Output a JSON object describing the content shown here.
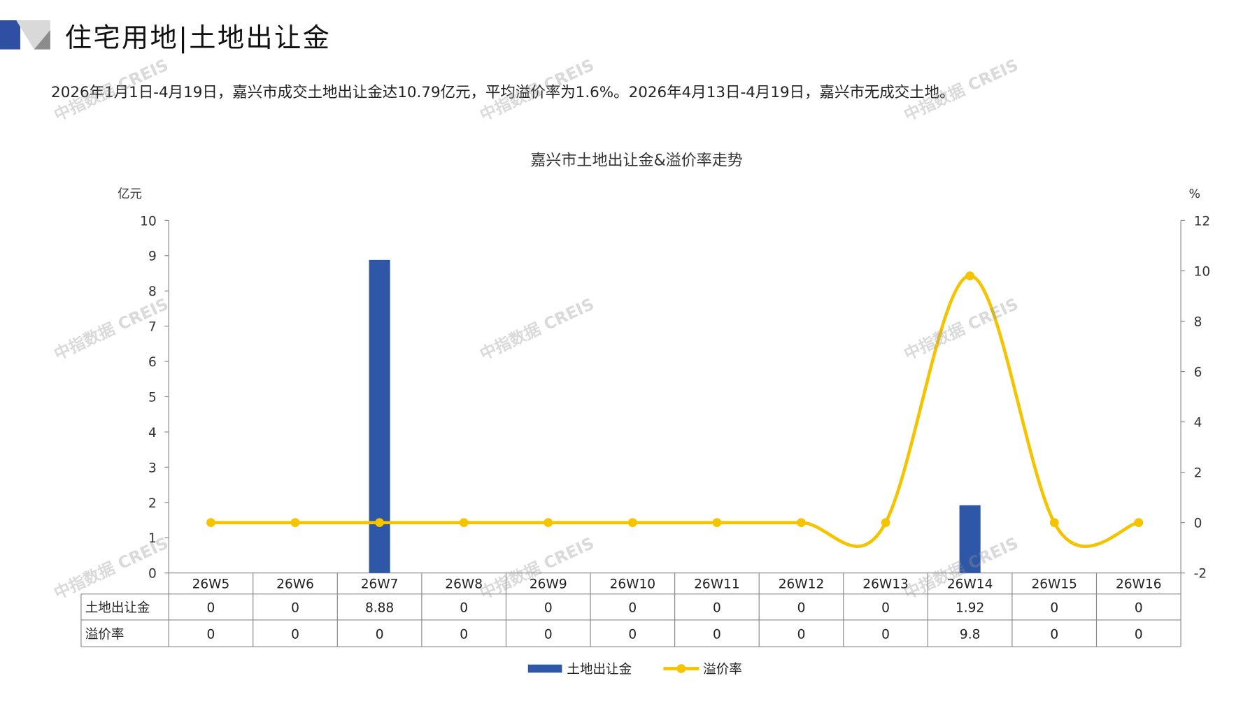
{
  "header": {
    "title": "住宅用地|土地出让金"
  },
  "summary": "2026年1月1日-4月19日，嘉兴市成交土地出让金达10.79亿元，平均溢价率为1.6%。2026年4月13日-4月19日，嘉兴市无成交土地。",
  "watermark": "中指数据 CREIS",
  "colors": {
    "bar": "#2e57a8",
    "line": "#f5c400",
    "accent": "#2e4fa3"
  },
  "chart_data": {
    "type": "bar+line",
    "title": "嘉兴市土地出让金&溢价率走势",
    "categories": [
      "26W5",
      "26W6",
      "26W7",
      "26W8",
      "26W9",
      "26W10",
      "26W11",
      "26W12",
      "26W13",
      "26W14",
      "26W15",
      "26W16"
    ],
    "y_left": {
      "label": "亿元",
      "range": [
        0,
        10
      ],
      "ticks": [
        0,
        1,
        2,
        3,
        4,
        5,
        6,
        7,
        8,
        9,
        10
      ]
    },
    "y_right": {
      "label": "%",
      "range": [
        -2,
        12
      ],
      "ticks": [
        -2,
        0,
        2,
        4,
        6,
        8,
        10,
        12
      ]
    },
    "series": [
      {
        "name": "土地出让金",
        "type": "bar",
        "axis": "left",
        "values": [
          0,
          0,
          8.88,
          0,
          0,
          0,
          0,
          0,
          0,
          1.92,
          0,
          0
        ],
        "labels": [
          "0",
          "0",
          "8.88",
          "0",
          "0",
          "0",
          "0",
          "0",
          "0",
          "1.92",
          "0",
          "0"
        ]
      },
      {
        "name": "溢价率",
        "type": "line",
        "axis": "right",
        "values": [
          0,
          0,
          0,
          0,
          0,
          0,
          0,
          0,
          0,
          9.8,
          0,
          0
        ],
        "labels": [
          "0",
          "0",
          "0",
          "0",
          "0",
          "0",
          "0",
          "0",
          "0",
          "9.8",
          "0",
          "0"
        ]
      }
    ],
    "data_table": true,
    "legend": "bottom",
    "grid": false
  }
}
